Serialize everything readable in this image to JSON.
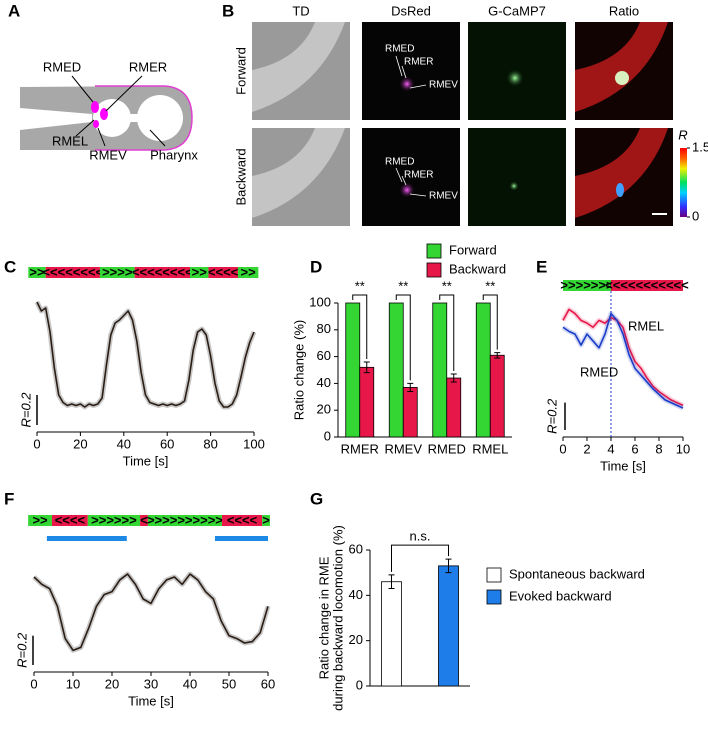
{
  "panel_labels": [
    "A",
    "B",
    "C",
    "D",
    "E",
    "F",
    "G"
  ],
  "a": {
    "labels": [
      "RMED",
      "RMER",
      "RMEL",
      "RMEV",
      "Pharynx"
    ]
  },
  "b": {
    "columns": [
      "TD",
      "DsRed",
      "G-CaMP7",
      "Ratio"
    ],
    "rows": [
      "Forward",
      "Backward"
    ],
    "neuron_labels": [
      "RMED",
      "RMER",
      "RMEV"
    ],
    "colorbar": {
      "label": "R",
      "range": [
        0,
        1.5
      ],
      "ticks": [
        1.5,
        0
      ]
    }
  },
  "chart_data": [
    {
      "type": "line",
      "xlabel": "Time [s]",
      "x": [
        0,
        2,
        4,
        6,
        8,
        10,
        12,
        14,
        16,
        18,
        20,
        22,
        24,
        26,
        28,
        30,
        32,
        34,
        36,
        38,
        40,
        42,
        44,
        46,
        48,
        50,
        52,
        54,
        56,
        58,
        60,
        62,
        64,
        66,
        68,
        70,
        72,
        74,
        76,
        78,
        80,
        82,
        84,
        86,
        88,
        90,
        92,
        94,
        96,
        98,
        100
      ],
      "series": [
        {
          "color": "#2b1d14",
          "values": [
            1.42,
            1.36,
            1.38,
            1.22,
            0.98,
            0.8,
            0.75,
            0.73,
            0.74,
            0.73,
            0.74,
            0.72,
            0.74,
            0.73,
            0.74,
            0.78,
            1.0,
            1.2,
            1.28,
            1.3,
            1.33,
            1.36,
            1.3,
            1.16,
            0.95,
            0.8,
            0.75,
            0.74,
            0.73,
            0.74,
            0.73,
            0.74,
            0.73,
            0.74,
            0.76,
            0.9,
            1.1,
            1.22,
            1.24,
            1.2,
            1.06,
            0.88,
            0.76,
            0.72,
            0.72,
            0.74,
            0.8,
            0.92,
            1.05,
            1.15,
            1.22
          ]
        }
      ],
      "xlim": [
        0,
        100
      ],
      "xticks": [
        0,
        20,
        40,
        60,
        80,
        100
      ],
      "ylim": [
        0.6,
        1.5
      ],
      "scale_bar": {
        "value": 0.2,
        "label": "R=0.2"
      },
      "segments": [
        {
          "label": ">>",
          "start": -4,
          "end": 4,
          "color": "#33d633"
        },
        {
          "label": "<<<<<<<<",
          "start": 4,
          "end": 29,
          "color": "#e8174a"
        },
        {
          "label": ">>>>",
          "start": 29,
          "end": 45,
          "color": "#33d633"
        },
        {
          "label": "<<<<<<<<",
          "start": 45,
          "end": 70.5,
          "color": "#e8174a"
        },
        {
          "label": ">>",
          "start": 70.5,
          "end": 79,
          "color": "#33d633"
        },
        {
          "label": "<<<<",
          "start": 79,
          "end": 92.6,
          "color": "#e8174a"
        },
        {
          "label": ">>",
          "start": 92.6,
          "end": 102,
          "color": "#33d633"
        }
      ]
    },
    {
      "type": "bar",
      "ylabel": "Ratio change (%)",
      "categories": [
        "RMER",
        "RMEV",
        "RMED",
        "RMEL"
      ],
      "series": [
        {
          "name": "Forward",
          "color": "#33d633",
          "values": [
            100,
            100,
            100,
            100
          ]
        },
        {
          "name": "Backward",
          "color": "#e8174a",
          "values": [
            52,
            37,
            44,
            61
          ],
          "errors": [
            4,
            3,
            3,
            2
          ]
        }
      ],
      "ylim": [
        0,
        100
      ],
      "yticks": [
        0,
        20,
        40,
        60,
        80,
        100
      ],
      "annotations": [
        "**",
        "**",
        "**",
        "**"
      ]
    },
    {
      "type": "line",
      "xlabel": "Time [s]",
      "x": [
        0,
        0.5,
        1,
        1.5,
        2,
        2.5,
        3,
        3.5,
        4,
        4.5,
        5,
        5.5,
        6,
        6.5,
        7,
        7.5,
        8,
        8.5,
        9,
        9.5,
        10
      ],
      "series": [
        {
          "name": "RMEL",
          "color": "#e8174a",
          "values": [
            1.3,
            1.38,
            1.35,
            1.3,
            1.28,
            1.25,
            1.3,
            1.28,
            1.32,
            1.3,
            1.25,
            1.1,
            1.0,
            0.95,
            0.88,
            0.82,
            0.78,
            0.75,
            0.72,
            0.7,
            0.68
          ]
        },
        {
          "name": "RMED",
          "color": "#1a3cc8",
          "values": [
            1.25,
            1.22,
            1.2,
            1.12,
            1.2,
            1.15,
            1.1,
            1.2,
            1.35,
            1.3,
            1.2,
            1.05,
            0.95,
            0.9,
            0.85,
            0.8,
            0.76,
            0.72,
            0.7,
            0.68,
            0.66
          ]
        }
      ],
      "xlim": [
        0,
        10
      ],
      "xticks": [
        0,
        2,
        4,
        6,
        8,
        10
      ],
      "ylim": [
        0.5,
        1.5
      ],
      "marker_x": 4,
      "scale_bar": {
        "value": 0.2,
        "label": "R=0.2"
      },
      "segments": [
        {
          "label": ">>>>>>>",
          "start": 0,
          "end": 4,
          "color": "#33d633"
        },
        {
          "label": "<<<<<<<<<<<",
          "start": 4,
          "end": 10,
          "color": "#e8174a"
        }
      ]
    },
    {
      "type": "line",
      "xlabel": "Time [s]",
      "x": [
        0,
        2,
        4,
        6,
        8,
        10,
        12,
        14,
        16,
        18,
        20,
        22,
        24,
        26,
        28,
        30,
        32,
        34,
        36,
        38,
        40,
        42,
        44,
        46,
        48,
        50,
        52,
        54,
        56,
        58,
        60
      ],
      "series": [
        {
          "color": "#2b1d14",
          "values": [
            1.2,
            1.15,
            1.12,
            1.0,
            0.78,
            0.7,
            0.72,
            0.85,
            1.0,
            1.08,
            1.1,
            1.18,
            1.22,
            1.15,
            1.05,
            1.02,
            1.12,
            1.18,
            1.2,
            1.15,
            1.22,
            1.18,
            1.1,
            1.05,
            0.9,
            0.8,
            0.78,
            0.75,
            0.76,
            0.82,
            1.0
          ]
        }
      ],
      "xlim": [
        0,
        60
      ],
      "xticks": [
        0,
        10,
        20,
        30,
        40,
        50,
        60
      ],
      "ylim": [
        0.6,
        1.35
      ],
      "scale_bar": {
        "value": 0.2,
        "label": "R=0.2"
      },
      "segments": [
        {
          "label": ">>",
          "start": -1.5,
          "end": 4.6,
          "color": "#33d633"
        },
        {
          "label": "<<<<",
          "start": 4.6,
          "end": 13.8,
          "color": "#e8174a"
        },
        {
          "label": ">>>>>>",
          "start": 13.8,
          "end": 27.2,
          "color": "#33d633"
        },
        {
          "label": "<",
          "start": 27.2,
          "end": 29.2,
          "color": "#e8174a"
        },
        {
          "label": ">>>>>>>>>>",
          "start": 29.2,
          "end": 48.2,
          "color": "#33d633"
        },
        {
          "label": "<<<<",
          "start": 48.2,
          "end": 58.5,
          "color": "#e8174a"
        },
        {
          "label": ">",
          "start": 58.5,
          "end": 60.5,
          "color": "#33d633"
        }
      ],
      "stimulus": {
        "color": "#1e88e5",
        "intervals": [
          [
            3.3,
            23.8
          ],
          [
            46.4,
            60
          ]
        ]
      }
    },
    {
      "type": "bar",
      "ylabel": [
        "Ratio change in RME",
        "during backward locomotion (%)"
      ],
      "categories": [
        null
      ],
      "series": [
        {
          "name": "Spontaneous backward",
          "color": "#ffffff",
          "values": [
            46
          ],
          "errors": [
            3
          ]
        },
        {
          "name": "Evoked backward",
          "color": "#1e7de8",
          "values": [
            53
          ],
          "errors": [
            3
          ]
        }
      ],
      "ylim": [
        0,
        60
      ],
      "yticks": [
        0,
        20,
        40,
        60
      ],
      "annotations": [
        "n.s."
      ]
    }
  ]
}
